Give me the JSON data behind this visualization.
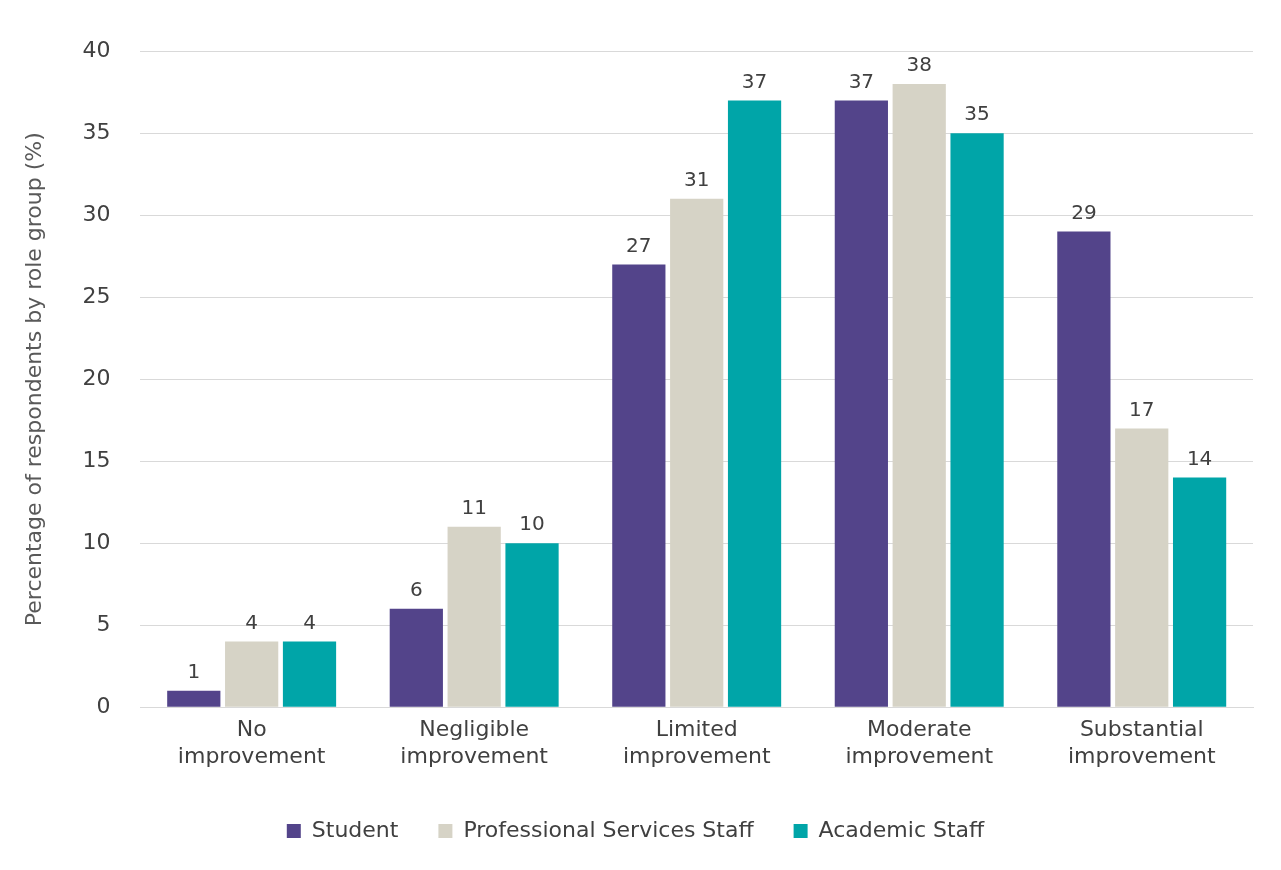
{
  "chart_data": {
    "type": "bar",
    "ylabel": "Percentage of respondents by role group (%)",
    "categories": [
      "No improvement",
      "Negligible improvement",
      "Limited improvement",
      "Moderate improvement",
      "Substantial improvement"
    ],
    "series": [
      {
        "name": "Student",
        "color": "#53448a",
        "values": [
          1,
          6,
          27,
          37,
          29
        ]
      },
      {
        "name": "Professional Services Staff",
        "color": "#d6d3c6",
        "values": [
          4,
          11,
          31,
          38,
          17
        ]
      },
      {
        "name": "Academic Staff",
        "color": "#00a5a8",
        "values": [
          4,
          10,
          37,
          35,
          14
        ]
      }
    ],
    "ylim": [
      0,
      40
    ],
    "yticks": [
      0,
      5,
      10,
      15,
      20,
      25,
      30,
      35,
      40
    ],
    "grid": "y",
    "legend": "bottom",
    "data_labels": true
  }
}
